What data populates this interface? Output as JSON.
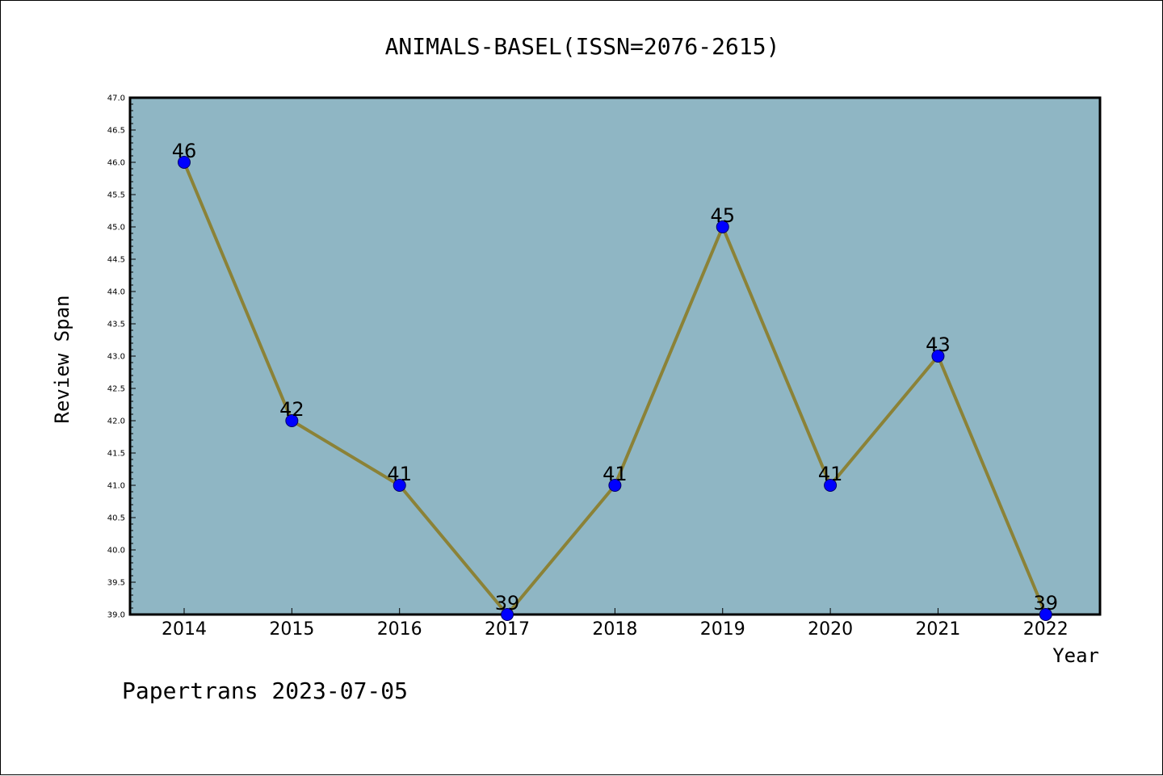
{
  "chart_data": {
    "type": "line",
    "title": "ANIMALS-BASEL(ISSN=2076-2615)",
    "xlabel": "Year",
    "ylabel": "Review Span",
    "categories": [
      "2014",
      "2015",
      "2016",
      "2017",
      "2018",
      "2019",
      "2020",
      "2021",
      "2022"
    ],
    "values": [
      46,
      42,
      41,
      39,
      41,
      45,
      41,
      43,
      39
    ],
    "data_labels": [
      "46",
      "42",
      "41",
      "39",
      "41",
      "45",
      "41",
      "43",
      "39"
    ],
    "ylim": [
      39.0,
      47.0
    ],
    "yticks": [
      "39.0",
      "39.5",
      "40.0",
      "40.5",
      "41.0",
      "41.5",
      "42.0",
      "42.5",
      "43.0",
      "43.5",
      "44.0",
      "44.5",
      "45.0",
      "45.5",
      "46.0",
      "46.5",
      "47.0"
    ],
    "grid": false,
    "legend": "none",
    "colors": {
      "plot_background": "#8fb6c4",
      "line": "#8b8237",
      "marker": "#0000ff",
      "marker_edge": "#000066",
      "frame": "#000000"
    }
  },
  "footer": {
    "text": "Papertrans 2023-07-05"
  }
}
